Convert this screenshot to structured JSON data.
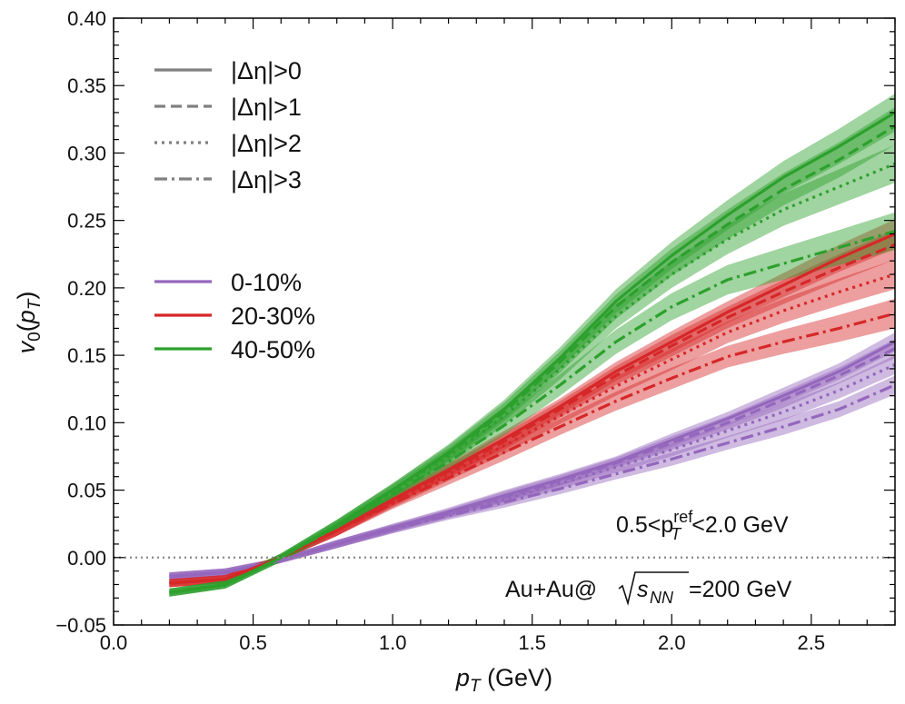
{
  "chart_data": {
    "type": "line",
    "xlabel": "p_T (GeV)",
    "ylabel": "v_0(p_T)",
    "xlim": [
      0.0,
      2.8
    ],
    "ylim": [
      -0.05,
      0.4
    ],
    "xticks": [
      0.0,
      0.5,
      1.0,
      1.5,
      2.0,
      2.5
    ],
    "xtick_labels": [
      "0.0",
      "0.5",
      "1.0",
      "1.5",
      "2.0",
      "2.5"
    ],
    "yticks": [
      -0.05,
      0.0,
      0.05,
      0.1,
      0.15,
      0.2,
      0.25,
      0.3,
      0.35,
      0.4
    ],
    "ytick_labels": [
      "−0.05",
      "0.00",
      "0.05",
      "0.10",
      "0.15",
      "0.20",
      "0.25",
      "0.30",
      "0.35",
      "0.40"
    ],
    "reference_line": {
      "y": 0.0,
      "style": "dotted",
      "color": "#888888"
    },
    "x": [
      0.2,
      0.4,
      0.6,
      0.8,
      1.0,
      1.2,
      1.4,
      1.6,
      1.8,
      2.0,
      2.2,
      2.4,
      2.6,
      2.8
    ],
    "linestyles": [
      {
        "key": "eta0",
        "label": "|Δη|>0",
        "dash": "solid"
      },
      {
        "key": "eta1",
        "label": "|Δη|>1",
        "dash": "dashed"
      },
      {
        "key": "eta2",
        "label": "|Δη|>2",
        "dash": "dotted"
      },
      {
        "key": "eta3",
        "label": "|Δη|>3",
        "dash": "dashdot"
      }
    ],
    "centralities": [
      {
        "key": "c0",
        "label": "0-10%",
        "color": "#9467bd"
      },
      {
        "key": "c2",
        "label": "20-30%",
        "color": "#d62728"
      },
      {
        "key": "c4",
        "label": "40-50%",
        "color": "#2ca02c"
      }
    ],
    "series": [
      {
        "centrality": "c0",
        "eta": "eta0",
        "values": [
          -0.014,
          -0.011,
          -0.002,
          0.01,
          0.022,
          0.034,
          0.046,
          0.058,
          0.071,
          0.087,
          0.103,
          0.12,
          0.138,
          0.16
        ],
        "band": [
          0.003,
          0.003,
          0.002,
          0.003,
          0.003,
          0.003,
          0.004,
          0.004,
          0.004,
          0.005,
          0.005,
          0.006,
          0.006,
          0.007
        ]
      },
      {
        "centrality": "c0",
        "eta": "eta1",
        "values": [
          -0.014,
          -0.011,
          -0.002,
          0.01,
          0.022,
          0.033,
          0.045,
          0.057,
          0.07,
          0.085,
          0.1,
          0.117,
          0.135,
          0.155
        ],
        "band": [
          0.003,
          0.003,
          0.002,
          0.003,
          0.003,
          0.003,
          0.004,
          0.004,
          0.004,
          0.005,
          0.005,
          0.006,
          0.006,
          0.007
        ]
      },
      {
        "centrality": "c0",
        "eta": "eta2",
        "values": [
          -0.014,
          -0.011,
          -0.002,
          0.01,
          0.021,
          0.032,
          0.043,
          0.055,
          0.067,
          0.08,
          0.094,
          0.108,
          0.124,
          0.143
        ],
        "band": [
          0.003,
          0.003,
          0.002,
          0.003,
          0.003,
          0.003,
          0.004,
          0.004,
          0.004,
          0.005,
          0.005,
          0.006,
          0.006,
          0.007
        ]
      },
      {
        "centrality": "c0",
        "eta": "eta3",
        "values": [
          -0.014,
          -0.011,
          -0.002,
          0.01,
          0.021,
          0.031,
          0.041,
          0.051,
          0.062,
          0.073,
          0.085,
          0.097,
          0.11,
          0.128
        ],
        "band": [
          0.003,
          0.003,
          0.002,
          0.003,
          0.003,
          0.003,
          0.004,
          0.004,
          0.004,
          0.005,
          0.005,
          0.006,
          0.006,
          0.007
        ]
      },
      {
        "centrality": "c2",
        "eta": "eta0",
        "values": [
          -0.019,
          -0.016,
          0.0,
          0.02,
          0.043,
          0.065,
          0.088,
          0.112,
          0.138,
          0.16,
          0.182,
          0.202,
          0.222,
          0.24
        ],
        "band": [
          0.003,
          0.003,
          0.002,
          0.004,
          0.004,
          0.005,
          0.006,
          0.006,
          0.007,
          0.008,
          0.008,
          0.009,
          0.01,
          0.011
        ]
      },
      {
        "centrality": "c2",
        "eta": "eta1",
        "values": [
          -0.019,
          -0.016,
          0.0,
          0.02,
          0.042,
          0.064,
          0.086,
          0.11,
          0.135,
          0.157,
          0.178,
          0.197,
          0.215,
          0.232
        ],
        "band": [
          0.003,
          0.003,
          0.002,
          0.004,
          0.004,
          0.005,
          0.006,
          0.006,
          0.007,
          0.008,
          0.008,
          0.009,
          0.01,
          0.011
        ]
      },
      {
        "centrality": "c2",
        "eta": "eta2",
        "values": [
          -0.019,
          -0.016,
          0.0,
          0.02,
          0.041,
          0.062,
          0.083,
          0.105,
          0.127,
          0.147,
          0.167,
          0.183,
          0.197,
          0.21
        ],
        "band": [
          0.003,
          0.003,
          0.002,
          0.004,
          0.004,
          0.005,
          0.006,
          0.006,
          0.007,
          0.008,
          0.008,
          0.009,
          0.01,
          0.011
        ]
      },
      {
        "centrality": "c2",
        "eta": "eta3",
        "values": [
          -0.019,
          -0.016,
          0.0,
          0.02,
          0.04,
          0.059,
          0.078,
          0.097,
          0.116,
          0.133,
          0.149,
          0.16,
          0.17,
          0.181
        ],
        "band": [
          0.003,
          0.003,
          0.002,
          0.004,
          0.004,
          0.005,
          0.006,
          0.006,
          0.007,
          0.008,
          0.008,
          0.009,
          0.01,
          0.011
        ]
      },
      {
        "centrality": "c4",
        "eta": "eta0",
        "values": [
          -0.026,
          -0.02,
          0.0,
          0.024,
          0.05,
          0.078,
          0.11,
          0.148,
          0.19,
          0.224,
          0.254,
          0.282,
          0.305,
          0.33
        ],
        "band": [
          0.003,
          0.003,
          0.003,
          0.004,
          0.005,
          0.006,
          0.007,
          0.008,
          0.009,
          0.01,
          0.011,
          0.012,
          0.013,
          0.014
        ]
      },
      {
        "centrality": "c4",
        "eta": "eta1",
        "values": [
          -0.026,
          -0.02,
          0.0,
          0.024,
          0.05,
          0.077,
          0.108,
          0.145,
          0.186,
          0.219,
          0.247,
          0.273,
          0.295,
          0.32
        ],
        "band": [
          0.003,
          0.003,
          0.003,
          0.004,
          0.005,
          0.006,
          0.007,
          0.008,
          0.009,
          0.01,
          0.011,
          0.012,
          0.013,
          0.014
        ]
      },
      {
        "centrality": "c4",
        "eta": "eta2",
        "values": [
          -0.026,
          -0.02,
          0.0,
          0.024,
          0.049,
          0.075,
          0.105,
          0.14,
          0.179,
          0.21,
          0.236,
          0.258,
          0.275,
          0.292
        ],
        "band": [
          0.003,
          0.003,
          0.003,
          0.004,
          0.005,
          0.006,
          0.007,
          0.008,
          0.009,
          0.01,
          0.011,
          0.012,
          0.013,
          0.014
        ]
      },
      {
        "centrality": "c4",
        "eta": "eta3",
        "values": [
          -0.026,
          -0.02,
          0.0,
          0.023,
          0.047,
          0.071,
          0.098,
          0.128,
          0.16,
          0.186,
          0.206,
          0.218,
          0.23,
          0.242
        ],
        "band": [
          0.003,
          0.003,
          0.003,
          0.004,
          0.005,
          0.006,
          0.007,
          0.008,
          0.009,
          0.01,
          0.011,
          0.012,
          0.013,
          0.014
        ]
      }
    ],
    "annotations": [
      {
        "key": "pt_ref",
        "text_pre": "0.5<p",
        "sub": "T",
        "sup": "ref",
        "text_post": "<2.0 GeV"
      },
      {
        "key": "system",
        "text_pre": "Au+Au@",
        "radicand": "s",
        "radicand_sub": "NN",
        "text_post": "=200 GeV"
      }
    ]
  }
}
